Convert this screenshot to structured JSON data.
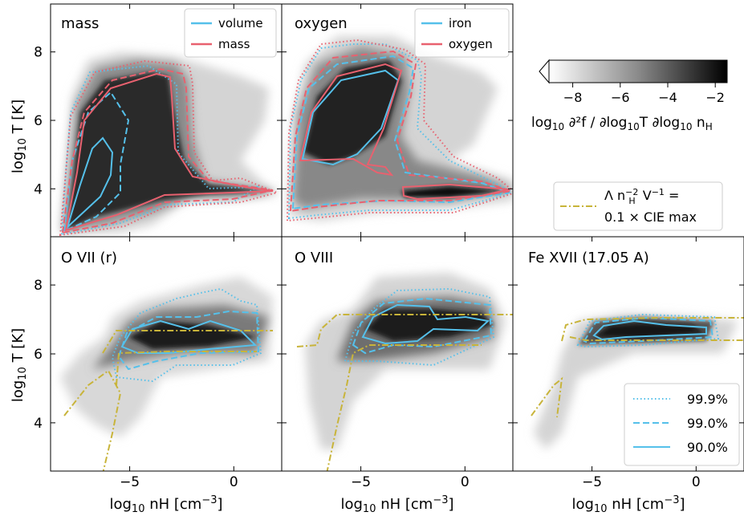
{
  "chart_data": [
    {
      "type": "heatmap",
      "panel": "mass",
      "label": "mass",
      "legend": [
        {
          "name": "volume",
          "color": "#55c0ea"
        },
        {
          "name": "mass",
          "color": "#e8616f"
        }
      ]
    },
    {
      "type": "heatmap",
      "panel": "oxygen",
      "label": "oxygen",
      "legend": [
        {
          "name": "iron",
          "color": "#55c0ea"
        },
        {
          "name": "oxygen",
          "color": "#e8616f"
        }
      ]
    },
    {
      "type": "heatmap",
      "panel": "o7r",
      "label": "O VII (r)"
    },
    {
      "type": "heatmap",
      "panel": "o8",
      "label": "O VIII"
    },
    {
      "type": "heatmap",
      "panel": "fe17",
      "label": "Fe XVII (17.05 A)"
    }
  ],
  "axes": {
    "xlabel": "log₁₀ nH [cm⁻³]",
    "ylabel": "log₁₀ T [K]",
    "xlim": [
      -8.8,
      2.3
    ],
    "ylim": [
      2.6,
      9.4
    ],
    "xticks": [
      -5,
      0
    ],
    "xtick_labels": [
      "−5",
      "0"
    ],
    "yticks": [
      4,
      6,
      8
    ],
    "ytick_labels": [
      "4",
      "6",
      "8"
    ]
  },
  "colorbar": {
    "range": [
      -9,
      -1.5
    ],
    "ticks": [
      -8,
      -6,
      -4,
      -2
    ],
    "tick_labels": [
      "−8",
      "−6",
      "−4",
      "−2"
    ],
    "label": "log₁₀ ∂²f / ∂log₁₀T ∂log₁₀ n_H",
    "colormap": "gray_r"
  },
  "cie_legend": {
    "line1": "Λ n_H⁻² V⁻¹ =",
    "line2": "0.1 × CIE max",
    "color": "#c8b43a"
  },
  "level_legend": [
    {
      "label": "99.9%",
      "style": "dotted"
    },
    {
      "label": "99.0%",
      "style": "dashed"
    },
    {
      "label": "90.0%",
      "style": "solid"
    }
  ],
  "colors": {
    "blue": "#55c0ea",
    "red": "#e8616f",
    "cie": "#c8b43a"
  }
}
